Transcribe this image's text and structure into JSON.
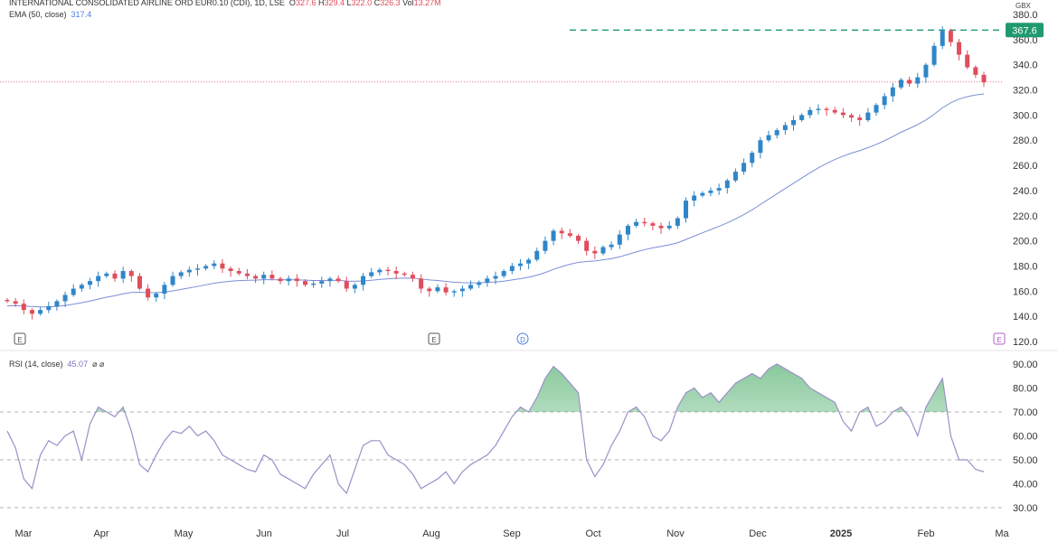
{
  "header": {
    "symbol": "INTERNATIONAL CONSOLIDATED AIRLINE ORD EUR0.10 (CDI), 1D, LSE",
    "o_label": "O",
    "o": "327.6",
    "h_label": "H",
    "h": "329.4",
    "l_label": "L",
    "l": "322.0",
    "c_label": "C",
    "c": "326.3",
    "vol_label": "Vol",
    "vol": "13.27M",
    "ema_label": "EMA (50, close)",
    "ema_value": "317.4",
    "rsi_label": "RSI (14, close)",
    "rsi_value": "45.07",
    "rsi_extra": "⌀ ⌀"
  },
  "colors": {
    "up": "#2f86c8",
    "down": "#e04d5c",
    "ema": "#7b8fd6",
    "rsi": "#9a90c8",
    "high_line": "#1f9a6e"
  },
  "chart_data": [
    {
      "type": "candlestick",
      "currency": "GBX",
      "ylim": [
        120,
        380
      ],
      "yticks": [
        "380.0",
        "360.0",
        "340.0",
        "320.0",
        "300.0",
        "280.0",
        "260.0",
        "240.0",
        "220.0",
        "200.0",
        "180.0",
        "160.0",
        "140.0",
        "120.0"
      ],
      "xticks": [
        "Mar",
        "Apr",
        "May",
        "Jun",
        "Jul",
        "Aug",
        "Sep",
        "Oct",
        "Nov",
        "Dec",
        "2025",
        "Feb",
        "Ma"
      ],
      "high_marker": "367.6",
      "last_price": 326.3,
      "events": [
        "E",
        "E",
        "D",
        "E"
      ],
      "closes": [
        152,
        150,
        145,
        142,
        145,
        148,
        152,
        157,
        162,
        165,
        168,
        172,
        174,
        170,
        176,
        172,
        162,
        155,
        158,
        165,
        172,
        175,
        177,
        178,
        180,
        182,
        178,
        176,
        174,
        172,
        170,
        173,
        170,
        168,
        170,
        168,
        165,
        166,
        168,
        170,
        168,
        162,
        165,
        172,
        175,
        177,
        176,
        174,
        173,
        170,
        162,
        160,
        163,
        159,
        160,
        162,
        165,
        167,
        170,
        172,
        176,
        180,
        182,
        185,
        192,
        200,
        208,
        206,
        204,
        200,
        192,
        190,
        195,
        197,
        205,
        212,
        215,
        214,
        212,
        210,
        212,
        218,
        232,
        236,
        238,
        240,
        242,
        248,
        255,
        262,
        270,
        280,
        284,
        288,
        292,
        296,
        300,
        304,
        305,
        304,
        302,
        300,
        298,
        296,
        302,
        308,
        315,
        322,
        328,
        325,
        330,
        340,
        355,
        367,
        358,
        348,
        338,
        332,
        326
      ],
      "ema_last": 317.4
    },
    {
      "type": "line",
      "name": "RSI (14, close)",
      "ylim": [
        25,
        95
      ],
      "yticks": [
        "90.00",
        "80.00",
        "70.00",
        "60.00",
        "50.00",
        "40.00",
        "30.00"
      ],
      "bands": [
        70,
        50,
        30
      ],
      "values": [
        62,
        55,
        42,
        38,
        52,
        58,
        56,
        60,
        62,
        50,
        65,
        72,
        70,
        68,
        72,
        62,
        48,
        45,
        52,
        58,
        62,
        61,
        64,
        60,
        62,
        58,
        52,
        50,
        48,
        46,
        45,
        52,
        50,
        44,
        42,
        40,
        38,
        44,
        48,
        52,
        40,
        36,
        46,
        56,
        58,
        58,
        52,
        50,
        48,
        44,
        38,
        40,
        42,
        45,
        40,
        45,
        48,
        50,
        52,
        56,
        62,
        68,
        72,
        70,
        76,
        84,
        89,
        86,
        82,
        78,
        50,
        43,
        48,
        56,
        62,
        70,
        72,
        68,
        60,
        58,
        62,
        72,
        78,
        80,
        76,
        78,
        74,
        78,
        82,
        84,
        86,
        84,
        88,
        90,
        88,
        86,
        84,
        80,
        78,
        76,
        74,
        66,
        62,
        70,
        72,
        64,
        66,
        70,
        72,
        68,
        60,
        72,
        78,
        84,
        60,
        50,
        50,
        46,
        45
      ]
    }
  ]
}
